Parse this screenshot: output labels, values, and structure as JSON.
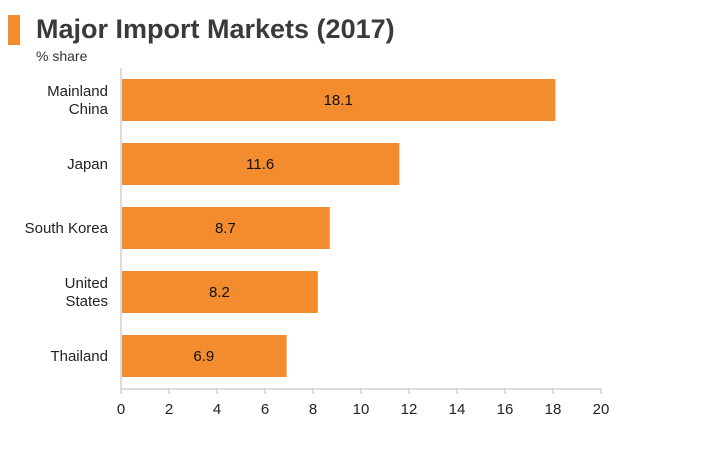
{
  "header": {
    "title": "Major Import Markets (2017)",
    "subtitle": "% share"
  },
  "colors": {
    "accent": "#f28c2f",
    "bar": "#f28c2f",
    "axis": "#bbbbbb"
  },
  "chart_data": {
    "type": "bar",
    "orientation": "horizontal",
    "title": "Major Import Markets (2017)",
    "subtitle": "% share",
    "categories": [
      "Mainland China",
      "Japan",
      "South Korea",
      "United States",
      "Thailand"
    ],
    "category_lines": [
      [
        "Mainland",
        "China"
      ],
      [
        "Japan"
      ],
      [
        "South Korea"
      ],
      [
        "United",
        "States"
      ],
      [
        "Thailand"
      ]
    ],
    "values": [
      18.1,
      11.6,
      8.7,
      8.2,
      6.9
    ],
    "value_labels": [
      "18.1",
      "11.6",
      "8.7",
      "8.2",
      "6.9"
    ],
    "xlim": [
      0,
      20
    ],
    "xticks": [
      0,
      2,
      4,
      6,
      8,
      10,
      12,
      14,
      16,
      18,
      20
    ],
    "grid": false,
    "legend": "none"
  }
}
